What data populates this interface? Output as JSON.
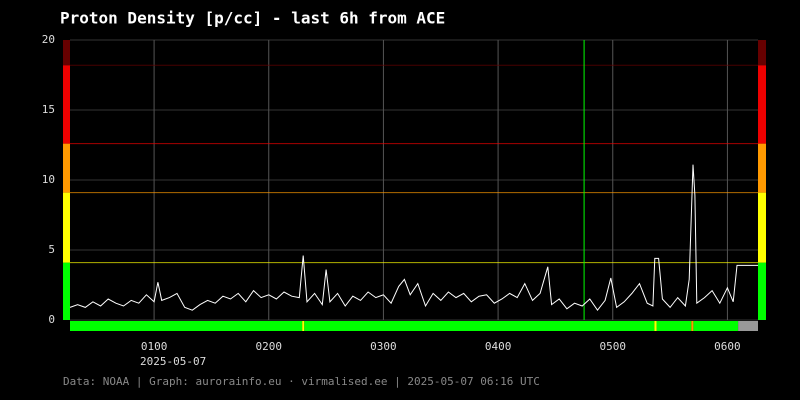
{
  "chart_data": {
    "type": "line",
    "title": "Proton Density [p/cc] - last 6h from ACE",
    "date_label": "2025-05-07",
    "footer": "Data: NOAA | Graph: aurorainfo.eu · virmalised.ee | 2025-05-07 06:16 UTC",
    "xlim": [
      16,
      376
    ],
    "xticks": [
      {
        "value": 60,
        "label": "0100"
      },
      {
        "value": 120,
        "label": "0200"
      },
      {
        "value": 180,
        "label": "0300"
      },
      {
        "value": 240,
        "label": "0400"
      },
      {
        "value": 300,
        "label": "0500"
      },
      {
        "value": 360,
        "label": "0600"
      }
    ],
    "ylim": [
      0,
      20
    ],
    "yticks": [
      0,
      5,
      10,
      15,
      20
    ],
    "grid": true,
    "levels": [
      {
        "from": 0,
        "to": 4.1,
        "color": "#00ff00"
      },
      {
        "from": 4.1,
        "to": 9.1,
        "color": "#ffff00"
      },
      {
        "from": 9.1,
        "to": 12.6,
        "color": "#ff9900"
      },
      {
        "from": 12.6,
        "to": 18.2,
        "color": "#ee0000"
      },
      {
        "from": 18.2,
        "to": 20,
        "color": "#660000"
      }
    ],
    "marker": {
      "x": 285,
      "color": "#00ff00"
    },
    "status_bar": [
      {
        "start": 16,
        "end": 137.5,
        "color": "#00ff00"
      },
      {
        "start": 137.5,
        "end": 138.6,
        "color": "#ffff00"
      },
      {
        "start": 138.6,
        "end": 321.8,
        "color": "#00ff00"
      },
      {
        "start": 321.8,
        "end": 322.9,
        "color": "#ffff00"
      },
      {
        "start": 322.9,
        "end": 341.1,
        "color": "#00ff00"
      },
      {
        "start": 341.1,
        "end": 342.2,
        "color": "#ff9900"
      },
      {
        "start": 342.2,
        "end": 365.6,
        "color": "#00ff00"
      },
      {
        "start": 365.6,
        "end": 376,
        "color": "#999999"
      }
    ],
    "series": [
      {
        "name": "Proton Density",
        "color": "#ffffff",
        "x": [
          16,
          20,
          24,
          28,
          32,
          36,
          40,
          44,
          48,
          52,
          56,
          60,
          62,
          64,
          68,
          72,
          76,
          80,
          84,
          88,
          92,
          96,
          100,
          104,
          108,
          112,
          116,
          120,
          124,
          128,
          132,
          136,
          138,
          140,
          144,
          148,
          150,
          152,
          156,
          160,
          164,
          168,
          172,
          176,
          180,
          184,
          188,
          191,
          194,
          198,
          202,
          206,
          210,
          214,
          218,
          222,
          226,
          230,
          234,
          238,
          242,
          246,
          250,
          254,
          258,
          262,
          266,
          268,
          272,
          276,
          280,
          284,
          288,
          292,
          296,
          299,
          302,
          306,
          310,
          314,
          318,
          321,
          322,
          324,
          326,
          330,
          334,
          338,
          340,
          342,
          343,
          344,
          348,
          352,
          356,
          360,
          363,
          365,
          376
        ],
        "values": [
          0.9,
          1.1,
          0.9,
          1.3,
          1.0,
          1.5,
          1.2,
          1.0,
          1.4,
          1.2,
          1.8,
          1.3,
          2.7,
          1.4,
          1.6,
          1.9,
          0.9,
          0.7,
          1.1,
          1.4,
          1.2,
          1.7,
          1.5,
          1.9,
          1.3,
          2.1,
          1.6,
          1.8,
          1.5,
          2.0,
          1.7,
          1.6,
          4.6,
          1.3,
          1.9,
          1.1,
          3.6,
          1.3,
          1.9,
          1.0,
          1.7,
          1.4,
          2.0,
          1.6,
          1.8,
          1.2,
          2.4,
          2.9,
          1.8,
          2.6,
          1.0,
          1.9,
          1.4,
          2.0,
          1.6,
          1.9,
          1.3,
          1.7,
          1.8,
          1.2,
          1.5,
          1.9,
          1.6,
          2.6,
          1.4,
          1.9,
          3.8,
          1.1,
          1.5,
          0.8,
          1.2,
          1.0,
          1.5,
          0.7,
          1.4,
          3.0,
          0.9,
          1.3,
          1.9,
          2.6,
          1.2,
          1.0,
          4.4,
          4.4,
          1.5,
          0.9,
          1.6,
          1.0,
          2.9,
          11.1,
          8.9,
          1.2,
          1.6,
          2.1,
          1.2,
          2.3,
          1.3,
          3.9,
          3.9
        ]
      }
    ]
  }
}
